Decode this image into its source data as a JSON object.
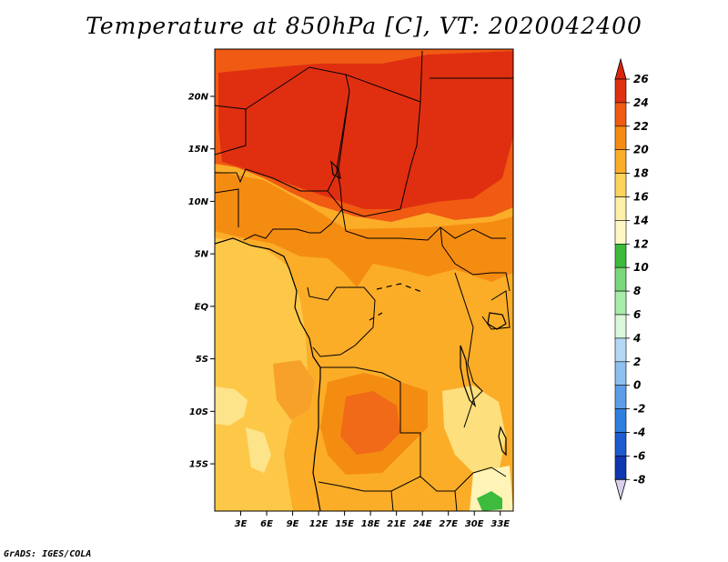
{
  "title": "Temperature at 850hPa [C], VT: 2020042400",
  "credit": "GrADS: IGES/COLA",
  "map": {
    "lon_range": [
      0,
      34.5
    ],
    "lat_range": [
      -19.5,
      24.5
    ],
    "lat_ticks": [
      {
        "value": 20,
        "label": "20N"
      },
      {
        "value": 15,
        "label": "15N"
      },
      {
        "value": 10,
        "label": "10N"
      },
      {
        "value": 5,
        "label": "5N"
      },
      {
        "value": 0,
        "label": "EQ"
      },
      {
        "value": -5,
        "label": "5S"
      },
      {
        "value": -10,
        "label": "10S"
      },
      {
        "value": -15,
        "label": "15S"
      }
    ],
    "lon_ticks": [
      {
        "value": 3,
        "label": "3E"
      },
      {
        "value": 6,
        "label": "6E"
      },
      {
        "value": 9,
        "label": "9E"
      },
      {
        "value": 12,
        "label": "12E"
      },
      {
        "value": 15,
        "label": "15E"
      },
      {
        "value": 18,
        "label": "18E"
      },
      {
        "value": 21,
        "label": "21E"
      },
      {
        "value": 24,
        "label": "24E"
      },
      {
        "value": 27,
        "label": "27E"
      },
      {
        "value": 30,
        "label": "30E"
      },
      {
        "value": 33,
        "label": "33E"
      }
    ]
  },
  "colorbar": {
    "levels": [
      "26",
      "24",
      "22",
      "20",
      "18",
      "16",
      "14",
      "12",
      "10",
      "8",
      "6",
      "4",
      "2",
      "0",
      "-2",
      "-4",
      "-6",
      "-8"
    ],
    "colors_top_to_bottom": [
      "#e02f10",
      "#f05a12",
      "#f58c12",
      "#fbad28",
      "#fdd35c",
      "#fff0a8",
      "#fff8c4",
      "#3cbb3c",
      "#7ad77a",
      "#a8ecaa",
      "#dcf8dc",
      "#b4d8f4",
      "#8cc0ee",
      "#5c9de8",
      "#2f7fe0",
      "#1e5ad0",
      "#0e36b0",
      "#081c80",
      "#d8d0ec"
    ],
    "top_arrow_color": "#d9250a",
    "bottom_arrow_color": "#d8d0ec"
  }
}
